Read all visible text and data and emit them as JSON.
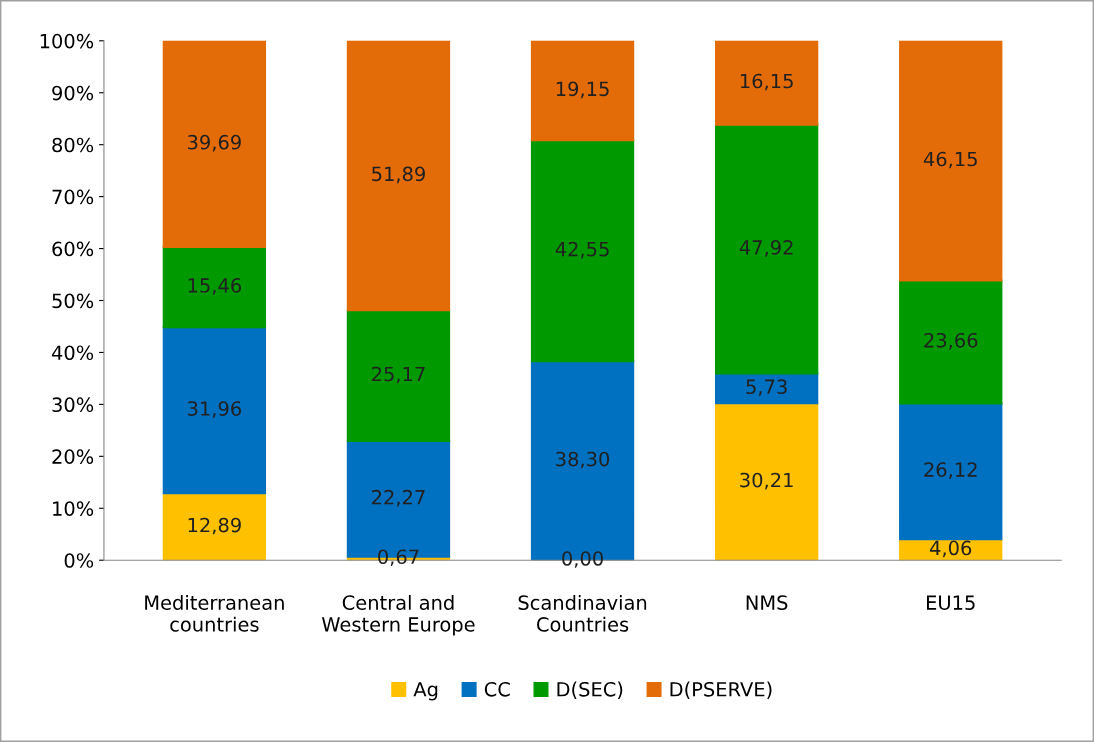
{
  "chart_data": {
    "type": "bar",
    "stacked": true,
    "categories": [
      "Mediterranean\ncountries",
      "Central and\nWestern Europe",
      "Scandinavian\nCountries",
      "NMS",
      "EU15"
    ],
    "series": [
      {
        "name": "Ag",
        "color": "#ffc000",
        "values": [
          12.89,
          0.67,
          0.0,
          30.21,
          4.06
        ],
        "value_labels": [
          "12,89",
          "0,67",
          "0,00",
          "30,21",
          "4,06"
        ]
      },
      {
        "name": "CC",
        "color": "#0070c0",
        "values": [
          31.96,
          22.27,
          38.3,
          5.73,
          26.12
        ],
        "value_labels": [
          "31,96",
          "22,27",
          "38,30",
          "5,73",
          "26,12"
        ]
      },
      {
        "name": "D(SEC)",
        "color": "#009a00",
        "values": [
          15.46,
          25.17,
          42.55,
          47.92,
          23.66
        ],
        "value_labels": [
          "15,46",
          "25,17",
          "42,55",
          "47,92",
          "23,66"
        ]
      },
      {
        "name": "D(PSERVE)",
        "color": "#e36c09",
        "values": [
          39.69,
          51.89,
          19.15,
          16.15,
          46.15
        ],
        "value_labels": [
          "39,69",
          "51,89",
          "19,15",
          "16,15",
          "46,15"
        ]
      }
    ],
    "ylim": [
      0,
      100
    ],
    "yticks": [
      {
        "value": 0,
        "label": "0%"
      },
      {
        "value": 10,
        "label": "10%"
      },
      {
        "value": 20,
        "label": "20%"
      },
      {
        "value": 30,
        "label": "30%"
      },
      {
        "value": 40,
        "label": "40%"
      },
      {
        "value": 50,
        "label": "50%"
      },
      {
        "value": 60,
        "label": "60%"
      },
      {
        "value": 70,
        "label": "70%"
      },
      {
        "value": 80,
        "label": "80%"
      },
      {
        "value": 90,
        "label": "90%"
      },
      {
        "value": 100,
        "label": "100%"
      }
    ],
    "grid": false,
    "legend": "bottom"
  }
}
